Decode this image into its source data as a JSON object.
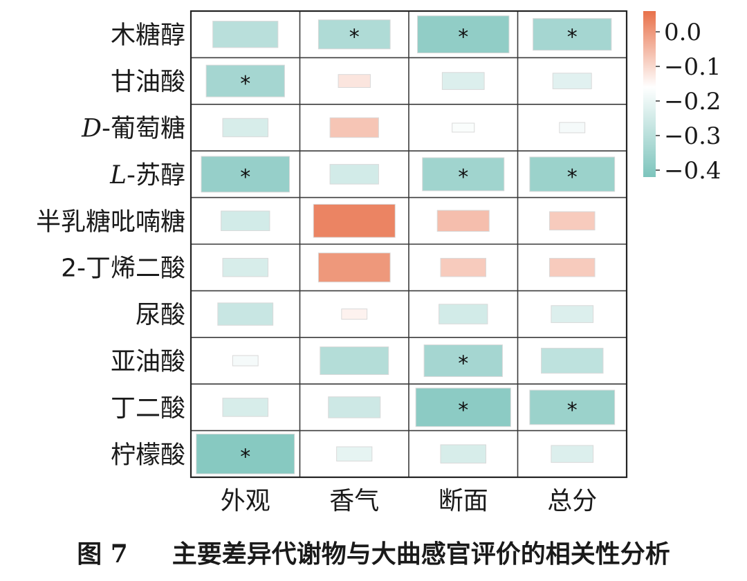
{
  "chart_data": {
    "type": "heatmap",
    "rows": [
      {
        "prefix": "",
        "text": "木糖醇"
      },
      {
        "prefix": "",
        "text": "甘油酸"
      },
      {
        "prefix": "D",
        "text": "-葡萄糖"
      },
      {
        "prefix": "L",
        "text": "-苏醇"
      },
      {
        "prefix": "",
        "text": "半乳糖吡喃糖"
      },
      {
        "prefix": "",
        "text": "2-丁烯二酸"
      },
      {
        "prefix": "",
        "text": "尿酸"
      },
      {
        "prefix": "",
        "text": "亚油酸"
      },
      {
        "prefix": "",
        "text": "丁二酸"
      },
      {
        "prefix": "",
        "text": "柠檬酸"
      }
    ],
    "columns": [
      "外观",
      "香气",
      "断面",
      "总分"
    ],
    "values": [
      [
        -0.3,
        -0.32,
        -0.38,
        -0.34
      ],
      [
        -0.34,
        -0.12,
        -0.23,
        -0.22
      ],
      [
        -0.24,
        -0.07,
        -0.17,
        -0.18
      ],
      [
        -0.37,
        -0.25,
        -0.35,
        -0.36
      ],
      [
        -0.25,
        0.03,
        -0.06,
        -0.08
      ],
      [
        -0.24,
        0.0,
        -0.08,
        -0.08
      ],
      [
        -0.27,
        -0.14,
        -0.25,
        -0.23
      ],
      [
        -0.18,
        -0.31,
        -0.34,
        -0.29
      ],
      [
        -0.24,
        -0.26,
        -0.39,
        -0.36
      ],
      [
        -0.4,
        -0.21,
        -0.24,
        -0.23
      ]
    ],
    "significant": [
      [
        false,
        true,
        true,
        true
      ],
      [
        true,
        false,
        false,
        false
      ],
      [
        false,
        false,
        false,
        false
      ],
      [
        true,
        false,
        true,
        true
      ],
      [
        false,
        false,
        false,
        false
      ],
      [
        false,
        false,
        false,
        false
      ],
      [
        false,
        false,
        false,
        false
      ],
      [
        false,
        false,
        true,
        false
      ],
      [
        false,
        false,
        true,
        true
      ],
      [
        true,
        false,
        false,
        false
      ]
    ],
    "star_symbol": "*",
    "colorbar": {
      "ticks": [
        0.0,
        -0.1,
        -0.2,
        -0.3,
        -0.4
      ],
      "tick_labels": [
        "0.0",
        "−0.1",
        "−0.2",
        "−0.3",
        "−0.4"
      ],
      "range": [
        -0.42,
        0.06
      ],
      "color_positive": "#E8714A",
      "color_mid": "#FFFFFF",
      "color_negative": "#7DC4BC",
      "mid_value": -0.16
    },
    "title": "",
    "xlabel": "",
    "ylabel": ""
  },
  "caption": {
    "figure_number": "图 7",
    "text": "主要差异代谢物与大曲感官评价的相关性分析"
  }
}
